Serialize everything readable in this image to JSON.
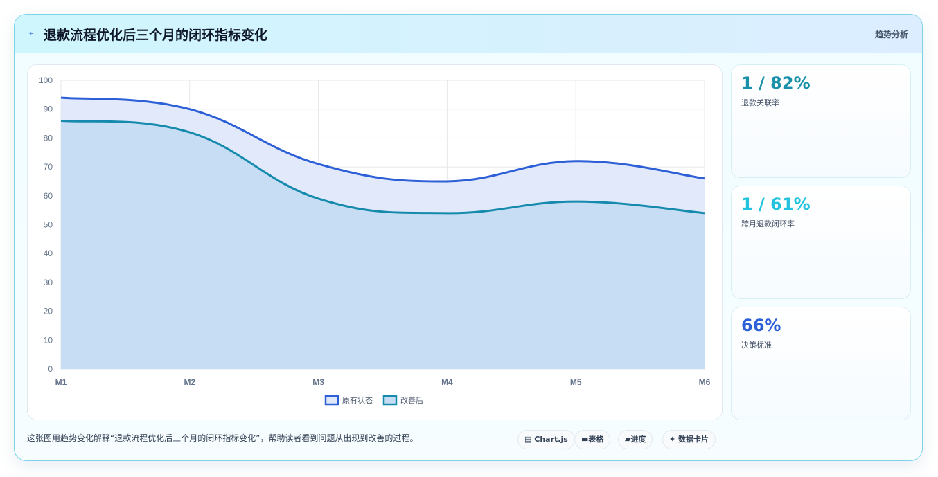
{
  "header": {
    "icon": "⌁",
    "title": "退款流程优化后三个月的闭环指标变化",
    "tag": "趋势分析"
  },
  "chart_data": {
    "type": "area",
    "categories": [
      "M1",
      "M2",
      "M3",
      "M4",
      "M5",
      "M6"
    ],
    "ylim": [
      0,
      100
    ],
    "yticks": [
      0,
      10,
      20,
      30,
      40,
      50,
      60,
      70,
      80,
      90,
      100
    ],
    "grid": true,
    "legend_position": "bottom",
    "series": [
      {
        "name": "原有状态",
        "values": [
          94,
          90,
          71,
          65,
          72,
          66
        ],
        "color": "#2d5fd6",
        "fill": "#dfe8fb"
      },
      {
        "name": "改善后",
        "values": [
          86,
          82,
          59,
          54,
          58,
          54
        ],
        "color": "#168aad",
        "fill": "#c5dcf2"
      }
    ]
  },
  "stats": [
    {
      "value": "1 / 82%",
      "label": "退款关联率",
      "color": "#1790a8"
    },
    {
      "value": "1 / 61%",
      "label": "跨月退款闭环率",
      "color": "#22c3dd"
    },
    {
      "value": "66%",
      "label": "决策标准",
      "color": "#2d5fd6"
    }
  ],
  "footer": {
    "text": "这张图用趋势变化解释“退款流程优化后三个月的闭环指标变化”，帮助读者看到问题从出现到改善的过程。",
    "pills": [
      {
        "icon": "▤",
        "label": "Chart.js"
      },
      {
        "icon": "▬",
        "label": "表格"
      },
      {
        "icon": "▰",
        "label": "进度"
      },
      {
        "icon": "✦",
        "label": "数据卡片"
      }
    ]
  }
}
